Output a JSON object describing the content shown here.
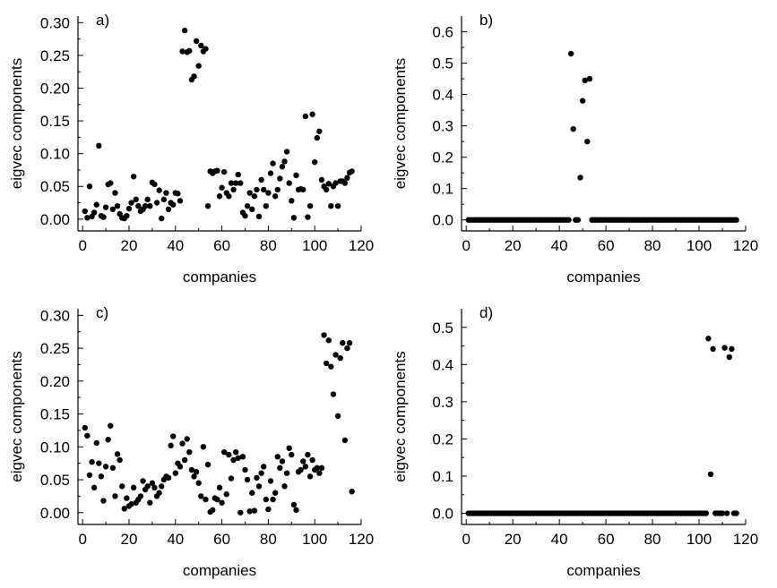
{
  "chart_data": [
    {
      "id": "a",
      "type": "scatter",
      "panel_label": "a)",
      "xlabel": "companies",
      "ylabel": "eigvec components",
      "xlim": [
        -2,
        120
      ],
      "ylim": [
        -0.018,
        0.31
      ],
      "xticks": [
        0,
        20,
        40,
        60,
        80,
        100,
        120
      ],
      "yticks": [
        0.0,
        0.05,
        0.1,
        0.15,
        0.2,
        0.25,
        0.3
      ],
      "ytick_labels": [
        "0.00",
        "0.05",
        "0.10",
        "0.15",
        "0.20",
        "0.25",
        "0.30"
      ],
      "series": [
        {
          "x": [
            1,
            2,
            3,
            4,
            5,
            6,
            7,
            8,
            9,
            10,
            11,
            12,
            13,
            14,
            15,
            16,
            17,
            18,
            19,
            20,
            21,
            22,
            23,
            24,
            25,
            26,
            27,
            28,
            29,
            30,
            31,
            32,
            33,
            34,
            35,
            36,
            37,
            38,
            39,
            40,
            41,
            42,
            43,
            44,
            45,
            46,
            47,
            48,
            49,
            50,
            51,
            52,
            53,
            54,
            55,
            56,
            57,
            58,
            59,
            60,
            61,
            62,
            63,
            64,
            65,
            66,
            67,
            68,
            69,
            70,
            71,
            72,
            73,
            74,
            75,
            76,
            77,
            78,
            79,
            80,
            81,
            82,
            83,
            84,
            85,
            86,
            87,
            88,
            89,
            90,
            91,
            92,
            93,
            94,
            95,
            96,
            97,
            98,
            99,
            100,
            101,
            102,
            103,
            104,
            105,
            106,
            107,
            108,
            109,
            110,
            111,
            112,
            113,
            114,
            115,
            116
          ],
          "y": [
            0.012,
            0.002,
            0.05,
            0.004,
            0.01,
            0.022,
            0.112,
            0.005,
            0.003,
            0.018,
            0.053,
            0.055,
            0.015,
            0.04,
            0.02,
            0.008,
            0.002,
            0.001,
            0.005,
            0.016,
            0.025,
            0.065,
            0.03,
            0.02,
            0.012,
            0.015,
            0.02,
            0.03,
            0.02,
            0.056,
            0.053,
            0.025,
            0.044,
            0.001,
            0.03,
            0.04,
            0.015,
            0.025,
            0.022,
            0.04,
            0.039,
            0.028,
            0.256,
            0.288,
            0.255,
            0.257,
            0.213,
            0.218,
            0.272,
            0.234,
            0.265,
            0.256,
            0.26,
            0.02,
            0.073,
            0.07,
            0.073,
            0.074,
            0.035,
            0.048,
            0.072,
            0.04,
            0.035,
            0.055,
            0.045,
            0.055,
            0.068,
            0.055,
            0.01,
            0.005,
            0.02,
            0.04,
            0.015,
            0.035,
            0.045,
            0.004,
            0.06,
            0.045,
            0.02,
            0.04,
            0.07,
            0.085,
            0.035,
            0.045,
            0.062,
            0.08,
            0.088,
            0.103,
            0.055,
            0.028,
            0.002,
            0.067,
            0.045,
            0.046,
            0.045,
            0.157,
            0.003,
            0.02,
            0.16,
            0.087,
            0.124,
            0.134,
            0.06,
            0.05,
            0.045,
            0.054,
            0.02,
            0.05,
            0.055,
            0.02,
            0.058,
            0.058,
            0.055,
            0.063,
            0.071,
            0.073
          ]
        }
      ]
    },
    {
      "id": "b",
      "type": "scatter",
      "panel_label": "b)",
      "xlabel": "companies",
      "ylabel": "eigvec components",
      "xlim": [
        -2,
        120
      ],
      "ylim": [
        -0.035,
        0.65
      ],
      "xticks": [
        0,
        20,
        40,
        60,
        80,
        100,
        120
      ],
      "yticks": [
        0.0,
        0.1,
        0.2,
        0.3,
        0.4,
        0.5,
        0.6
      ],
      "ytick_labels": [
        "0.0",
        "0.1",
        "0.2",
        "0.3",
        "0.4",
        "0.5",
        "0.6"
      ],
      "series": [
        {
          "x": [
            1,
            2,
            3,
            4,
            5,
            6,
            7,
            8,
            9,
            10,
            11,
            12,
            13,
            14,
            15,
            16,
            17,
            18,
            19,
            20,
            21,
            22,
            23,
            24,
            25,
            26,
            27,
            28,
            29,
            30,
            31,
            32,
            33,
            34,
            35,
            36,
            37,
            38,
            39,
            40,
            41,
            42,
            43,
            44,
            45,
            46,
            47,
            48,
            49,
            50,
            51,
            52,
            53,
            54,
            55,
            56,
            57,
            58,
            59,
            60,
            61,
            62,
            63,
            64,
            65,
            66,
            67,
            68,
            69,
            70,
            71,
            72,
            73,
            74,
            75,
            76,
            77,
            78,
            79,
            80,
            81,
            82,
            83,
            84,
            85,
            86,
            87,
            88,
            89,
            90,
            91,
            92,
            93,
            94,
            95,
            96,
            97,
            98,
            99,
            100,
            101,
            102,
            103,
            104,
            105,
            106,
            107,
            108,
            109,
            110,
            111,
            112,
            113,
            114,
            115,
            116
          ],
          "y": [
            0,
            0,
            0,
            0,
            0,
            0,
            0,
            0,
            0,
            0,
            0,
            0,
            0,
            0,
            0,
            0,
            0,
            0,
            0,
            0,
            0,
            0,
            0,
            0,
            0,
            0,
            0,
            0,
            0,
            0,
            0,
            0,
            0,
            0,
            0,
            0,
            0,
            0,
            0,
            0,
            0,
            0,
            0,
            0,
            0.53,
            0.29,
            0,
            0,
            0.135,
            0.38,
            0.445,
            0.25,
            0.45,
            0,
            0,
            0,
            0,
            0,
            0,
            0,
            0,
            0,
            0,
            0,
            0,
            0,
            0,
            0,
            0,
            0,
            0,
            0,
            0,
            0,
            0,
            0,
            0,
            0,
            0,
            0,
            0,
            0,
            0,
            0,
            0,
            0,
            0,
            0,
            0,
            0,
            0,
            0,
            0,
            0,
            0,
            0,
            0,
            0,
            0,
            0,
            0,
            0,
            0,
            0,
            0,
            0,
            0,
            0,
            0,
            0,
            0,
            0,
            0,
            0,
            0,
            0
          ]
        }
      ]
    },
    {
      "id": "c",
      "type": "scatter",
      "panel_label": "c)",
      "xlabel": "companies",
      "ylabel": "eigvec components",
      "xlim": [
        -2,
        120
      ],
      "ylim": [
        -0.018,
        0.31
      ],
      "xticks": [
        0,
        20,
        40,
        60,
        80,
        100,
        120
      ],
      "yticks": [
        0.0,
        0.05,
        0.1,
        0.15,
        0.2,
        0.25,
        0.3
      ],
      "ytick_labels": [
        "0.00",
        "0.05",
        "0.10",
        "0.15",
        "0.20",
        "0.25",
        "0.30"
      ],
      "series": [
        {
          "x": [
            1,
            2,
            3,
            4,
            5,
            6,
            7,
            8,
            9,
            10,
            11,
            12,
            13,
            14,
            15,
            16,
            17,
            18,
            19,
            20,
            21,
            22,
            23,
            24,
            25,
            26,
            27,
            28,
            29,
            30,
            31,
            32,
            33,
            34,
            35,
            36,
            37,
            38,
            39,
            40,
            41,
            42,
            43,
            44,
            45,
            46,
            47,
            48,
            49,
            50,
            51,
            52,
            53,
            54,
            55,
            56,
            57,
            58,
            59,
            60,
            61,
            62,
            63,
            64,
            65,
            66,
            67,
            68,
            69,
            70,
            71,
            72,
            73,
            74,
            75,
            76,
            77,
            78,
            79,
            80,
            81,
            82,
            83,
            84,
            85,
            86,
            87,
            88,
            89,
            90,
            91,
            92,
            93,
            94,
            95,
            96,
            97,
            98,
            99,
            100,
            101,
            102,
            103,
            104,
            105,
            106,
            107,
            108,
            109,
            110,
            111,
            112,
            113,
            114,
            115,
            116
          ],
          "y": [
            0.129,
            0.117,
            0.057,
            0.077,
            0.038,
            0.106,
            0.075,
            0.055,
            0.018,
            0.07,
            0.111,
            0.132,
            0.068,
            0.025,
            0.089,
            0.08,
            0.04,
            0.006,
            0.022,
            0.01,
            0.013,
            0.038,
            0.015,
            0.02,
            0.025,
            0.048,
            0.035,
            0.04,
            0.015,
            0.045,
            0.038,
            0.025,
            0.03,
            0.04,
            0.05,
            0.055,
            0.053,
            0.102,
            0.116,
            0.06,
            0.075,
            0.07,
            0.105,
            0.08,
            0.112,
            0.092,
            0.065,
            0.055,
            0.062,
            0.045,
            0.025,
            0.1,
            0.02,
            0.073,
            0.001,
            0.004,
            0.022,
            0.02,
            0.038,
            0.015,
            0.092,
            0.028,
            0.088,
            0.052,
            0.08,
            0.092,
            0.083,
            0.0,
            0.085,
            0.065,
            0.05,
            0.002,
            0.03,
            0.003,
            0.053,
            0.04,
            0.06,
            0.07,
            0.02,
            0.005,
            0.048,
            0.02,
            0.03,
            0.085,
            0.068,
            0.078,
            0.04,
            0.06,
            0.098,
            0.088,
            0.012,
            0.004,
            0.062,
            0.065,
            0.078,
            0.07,
            0.088,
            0.055,
            0.08,
            0.065,
            0.068,
            0.06,
            0.068,
            0.27,
            0.227,
            0.262,
            0.222,
            0.18,
            0.24,
            0.147,
            0.235,
            0.258,
            0.11,
            0.25,
            0.258,
            0.032
          ]
        }
      ]
    },
    {
      "id": "d",
      "type": "scatter",
      "panel_label": "d)",
      "xlabel": "companies",
      "ylabel": "eigvec components",
      "xlim": [
        -2,
        120
      ],
      "ylim": [
        -0.03,
        0.55
      ],
      "xticks": [
        0,
        20,
        40,
        60,
        80,
        100,
        120
      ],
      "yticks": [
        0.0,
        0.1,
        0.2,
        0.3,
        0.4,
        0.5
      ],
      "ytick_labels": [
        "0.0",
        "0.1",
        "0.2",
        "0.3",
        "0.4",
        "0.5"
      ],
      "series": [
        {
          "x": [
            1,
            2,
            3,
            4,
            5,
            6,
            7,
            8,
            9,
            10,
            11,
            12,
            13,
            14,
            15,
            16,
            17,
            18,
            19,
            20,
            21,
            22,
            23,
            24,
            25,
            26,
            27,
            28,
            29,
            30,
            31,
            32,
            33,
            34,
            35,
            36,
            37,
            38,
            39,
            40,
            41,
            42,
            43,
            44,
            45,
            46,
            47,
            48,
            49,
            50,
            51,
            52,
            53,
            54,
            55,
            56,
            57,
            58,
            59,
            60,
            61,
            62,
            63,
            64,
            65,
            66,
            67,
            68,
            69,
            70,
            71,
            72,
            73,
            74,
            75,
            76,
            77,
            78,
            79,
            80,
            81,
            82,
            83,
            84,
            85,
            86,
            87,
            88,
            89,
            90,
            91,
            92,
            93,
            94,
            95,
            96,
            97,
            98,
            99,
            100,
            101,
            102,
            103,
            104,
            105,
            106,
            107,
            108,
            109,
            110,
            111,
            112,
            113,
            114,
            115,
            116
          ],
          "y": [
            0,
            0,
            0,
            0,
            0,
            0,
            0,
            0,
            0,
            0,
            0,
            0,
            0,
            0,
            0,
            0,
            0,
            0,
            0,
            0,
            0,
            0,
            0,
            0,
            0,
            0,
            0,
            0,
            0,
            0,
            0,
            0,
            0,
            0,
            0,
            0,
            0,
            0,
            0,
            0,
            0,
            0,
            0,
            0,
            0,
            0,
            0,
            0,
            0,
            0,
            0,
            0,
            0,
            0,
            0,
            0,
            0,
            0,
            0,
            0,
            0,
            0,
            0,
            0,
            0,
            0,
            0,
            0,
            0,
            0,
            0,
            0,
            0,
            0,
            0,
            0,
            0,
            0,
            0,
            0,
            0,
            0,
            0,
            0,
            0,
            0,
            0,
            0,
            0,
            0,
            0,
            0,
            0,
            0,
            0,
            0,
            0,
            0,
            0,
            0,
            0,
            0,
            0,
            0.47,
            0.105,
            0.442,
            0,
            0,
            0,
            0,
            0.445,
            0,
            0.42,
            0.442,
            0,
            0
          ]
        }
      ]
    }
  ]
}
